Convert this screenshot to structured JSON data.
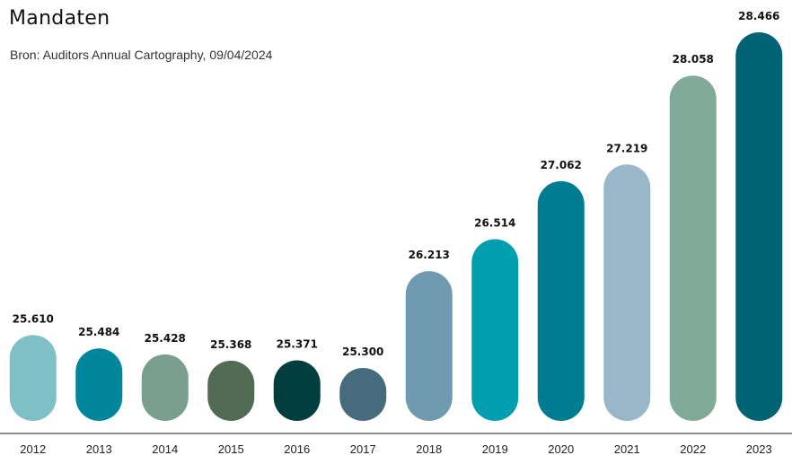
{
  "header": {
    "title": "Mandaten",
    "source": "Bron: Auditors Annual Cartography, 09/04/2024"
  },
  "chart_data": {
    "type": "bar",
    "categories": [
      "2012",
      "2013",
      "2014",
      "2015",
      "2016",
      "2017",
      "2018",
      "2019",
      "2020",
      "2021",
      "2022",
      "2023"
    ],
    "values": [
      25.61,
      25.484,
      25.428,
      25.368,
      25.371,
      25.3,
      26.213,
      26.514,
      27.062,
      27.219,
      28.058,
      28.466
    ],
    "value_labels": [
      "25.610",
      "25.484",
      "25.428",
      "25.368",
      "25.371",
      "25.300",
      "26.213",
      "26.514",
      "27.062",
      "27.219",
      "28.058",
      "28.466"
    ],
    "colors": [
      "#7fc0c7",
      "#00869b",
      "#7a9f8f",
      "#526b54",
      "#003f3d",
      "#466b7d",
      "#6f9aaf",
      "#009fb0",
      "#007c91",
      "#9ab7c9",
      "#81ab98",
      "#006373"
    ],
    "ylim": [
      24.8,
      28.466
    ],
    "grid": false,
    "legend": "none"
  }
}
